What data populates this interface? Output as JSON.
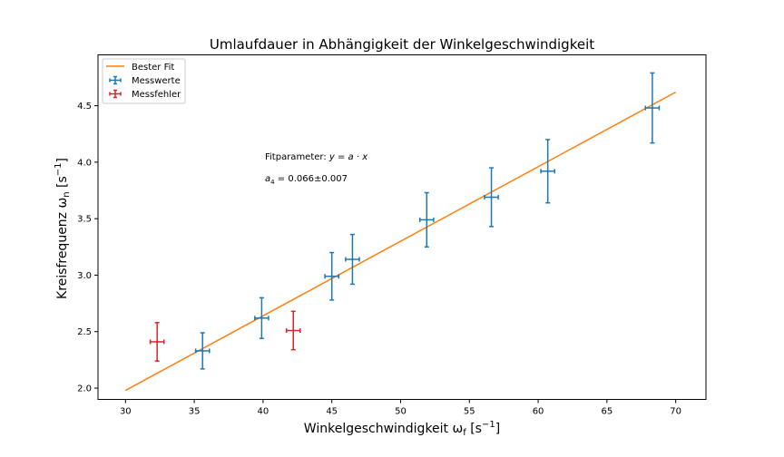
{
  "chart_data": {
    "type": "scatter",
    "title": "Umlaufdauer in Abhängigkeit der Winkelgeschwindigkeit",
    "xlabel": {
      "main": "Winkelgeschwindigkeit ω",
      "sub": "f",
      "unit_open": " [s",
      "sup": "−1",
      "unit_close": "]"
    },
    "ylabel": {
      "main": "Kreisfrequenz ω",
      "sub": "n",
      "unit_open": " [s",
      "sup": "−1",
      "unit_close": "]"
    },
    "xlim": [
      28,
      72.2
    ],
    "ylim": [
      1.9,
      4.95
    ],
    "xticks": [
      "30",
      "35",
      "40",
      "45",
      "50",
      "55",
      "60",
      "65",
      "70"
    ],
    "yticks": [
      "2.0",
      "2.5",
      "3.0",
      "3.5",
      "4.0",
      "4.5"
    ],
    "grid": false,
    "legend_position": "top-left",
    "series": [
      {
        "name": "Messwerte",
        "kind": "errorbar",
        "color": "#1f77b4",
        "points": [
          {
            "x": 35.6,
            "y": 2.33,
            "xerr": 0.5,
            "yerr": 0.16
          },
          {
            "x": 39.9,
            "y": 2.62,
            "xerr": 0.5,
            "yerr": 0.18
          },
          {
            "x": 45.0,
            "y": 2.99,
            "xerr": 0.5,
            "yerr": 0.21
          },
          {
            "x": 46.5,
            "y": 3.14,
            "xerr": 0.5,
            "yerr": 0.22
          },
          {
            "x": 51.9,
            "y": 3.49,
            "xerr": 0.5,
            "yerr": 0.24
          },
          {
            "x": 56.6,
            "y": 3.69,
            "xerr": 0.5,
            "yerr": 0.26
          },
          {
            "x": 60.7,
            "y": 3.92,
            "xerr": 0.5,
            "yerr": 0.28
          },
          {
            "x": 68.3,
            "y": 4.48,
            "xerr": 0.5,
            "yerr": 0.31
          }
        ]
      },
      {
        "name": "Messfehler",
        "kind": "errorbar",
        "color": "#d62728",
        "points": [
          {
            "x": 32.3,
            "y": 2.41,
            "xerr": 0.5,
            "yerr": 0.17
          },
          {
            "x": 42.2,
            "y": 2.51,
            "xerr": 0.5,
            "yerr": 0.17
          }
        ]
      },
      {
        "name": "Bester Fit",
        "kind": "line",
        "color": "#ff7f0e",
        "x": [
          30,
          70
        ],
        "y": [
          1.98,
          4.62
        ]
      }
    ],
    "annotations": {
      "fit_model": {
        "text": "Fitparameter: ",
        "formula": "y = a · x"
      },
      "fit_value": {
        "symbol": "a",
        "sub": "4",
        "text": " = 0.066±0.007"
      }
    }
  }
}
